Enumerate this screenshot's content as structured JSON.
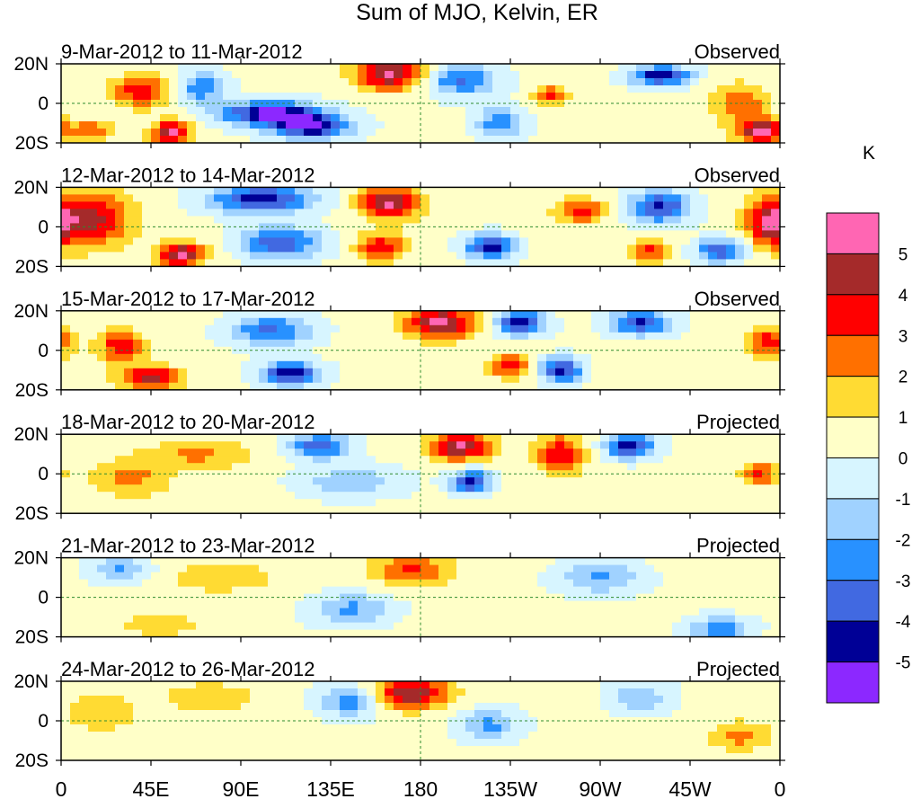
{
  "chart_data": {
    "type": "heatmap",
    "title": "Sum of MJO, Kelvin, ER",
    "units": "K",
    "x_ticks": [
      "0",
      "45E",
      "90E",
      "135E",
      "180",
      "135W",
      "90W",
      "45W",
      "0"
    ],
    "y_ticks": [
      "20N",
      "0",
      "20S"
    ],
    "xlim_degE": [
      0,
      360
    ],
    "ylim_deg": [
      -20,
      20
    ],
    "colorbar": {
      "labels": [
        "5",
        "4",
        "3",
        "2",
        "1",
        "0",
        "-1",
        "-2",
        "-3",
        "-4",
        "-5"
      ],
      "colors": [
        "#ff66b3",
        "#a52a2a",
        "#ff0000",
        "#ff7000",
        "#ffdb33",
        "#ffffc8",
        "#d7f5ff",
        "#a0d2ff",
        "#2891ff",
        "#4169e1",
        "#000096",
        "#8c28ff"
      ]
    },
    "panels": [
      {
        "period": "9-Mar-2012 to 11-Mar-2012",
        "status": "Observed",
        "blobs": [
          {
            "lon": 40,
            "lat": 6,
            "v": 3.5,
            "w": 15,
            "h": 8
          },
          {
            "lon": 15,
            "lat": -14,
            "v": 2.5,
            "w": 10,
            "h": 6
          },
          {
            "lon": 55,
            "lat": -15,
            "v": 5,
            "w": 10,
            "h": 6
          },
          {
            "lon": 70,
            "lat": 8,
            "v": -3,
            "w": 12,
            "h": 8
          },
          {
            "lon": 105,
            "lat": -5,
            "v": -5.5,
            "w": 25,
            "h": 6
          },
          {
            "lon": 125,
            "lat": -12,
            "v": -5,
            "w": 20,
            "h": 6
          },
          {
            "lon": 165,
            "lat": 15,
            "v": 5,
            "w": 18,
            "h": 8
          },
          {
            "lon": 200,
            "lat": 12,
            "v": -3.5,
            "w": 18,
            "h": 8
          },
          {
            "lon": 220,
            "lat": -10,
            "v": -3,
            "w": 12,
            "h": 8
          },
          {
            "lon": 245,
            "lat": 4,
            "v": 3,
            "w": 8,
            "h": 5
          },
          {
            "lon": 300,
            "lat": 14,
            "v": -5,
            "w": 15,
            "h": 5
          },
          {
            "lon": 340,
            "lat": 0,
            "v": 2.5,
            "w": 15,
            "h": 10
          },
          {
            "lon": 350,
            "lat": -14,
            "v": 5,
            "w": 12,
            "h": 6
          }
        ]
      },
      {
        "period": "12-Mar-2012 to 14-Mar-2012",
        "status": "Observed",
        "blobs": [
          {
            "lon": 15,
            "lat": 4,
            "v": 4,
            "w": 20,
            "h": 14
          },
          {
            "lon": 60,
            "lat": -14,
            "v": 5,
            "w": 12,
            "h": 6
          },
          {
            "lon": 100,
            "lat": 14,
            "v": -5,
            "w": 25,
            "h": 7
          },
          {
            "lon": 110,
            "lat": -8,
            "v": -4,
            "w": 20,
            "h": 8
          },
          {
            "lon": 165,
            "lat": 12,
            "v": 5,
            "w": 15,
            "h": 8
          },
          {
            "lon": 160,
            "lat": -10,
            "v": 3.5,
            "w": 12,
            "h": 7
          },
          {
            "lon": 215,
            "lat": -10,
            "v": -5,
            "w": 12,
            "h": 6
          },
          {
            "lon": 260,
            "lat": 8,
            "v": 3.5,
            "w": 12,
            "h": 6
          },
          {
            "lon": 300,
            "lat": 10,
            "v": -4.5,
            "w": 15,
            "h": 8
          },
          {
            "lon": 295,
            "lat": -12,
            "v": 3,
            "w": 10,
            "h": 6
          },
          {
            "lon": 330,
            "lat": -12,
            "v": -4,
            "w": 12,
            "h": 6
          },
          {
            "lon": 355,
            "lat": 2,
            "v": 4,
            "w": 12,
            "h": 12
          }
        ]
      },
      {
        "period": "15-Mar-2012 to 17-Mar-2012",
        "status": "Observed",
        "blobs": [
          {
            "lon": 30,
            "lat": 2,
            "v": 3.5,
            "w": 12,
            "h": 8
          },
          {
            "lon": 45,
            "lat": -14,
            "v": 4.5,
            "w": 15,
            "h": 6
          },
          {
            "lon": 105,
            "lat": 10,
            "v": -3.5,
            "w": 20,
            "h": 8
          },
          {
            "lon": 115,
            "lat": -12,
            "v": -5,
            "w": 15,
            "h": 6
          },
          {
            "lon": 190,
            "lat": 14,
            "v": 5,
            "w": 18,
            "h": 8
          },
          {
            "lon": 230,
            "lat": 14,
            "v": -5,
            "w": 12,
            "h": 6
          },
          {
            "lon": 225,
            "lat": -8,
            "v": 3.5,
            "w": 10,
            "h": 6
          },
          {
            "lon": 250,
            "lat": -10,
            "v": -5,
            "w": 10,
            "h": 6
          },
          {
            "lon": 290,
            "lat": 14,
            "v": -4.5,
            "w": 15,
            "h": 6
          },
          {
            "lon": 355,
            "lat": 4,
            "v": 3.5,
            "w": 10,
            "h": 8
          }
        ]
      },
      {
        "period": "18-Mar-2012 to 20-Mar-2012",
        "status": "Projected",
        "blobs": [
          {
            "lon": 35,
            "lat": -2,
            "v": 2,
            "w": 20,
            "h": 10
          },
          {
            "lon": 70,
            "lat": 10,
            "v": 2,
            "w": 25,
            "h": 8
          },
          {
            "lon": 130,
            "lat": 14,
            "v": -4,
            "w": 15,
            "h": 6
          },
          {
            "lon": 145,
            "lat": -4,
            "v": -2,
            "w": 25,
            "h": 8
          },
          {
            "lon": 200,
            "lat": 14,
            "v": 5,
            "w": 15,
            "h": 7
          },
          {
            "lon": 205,
            "lat": -4,
            "v": -4.5,
            "w": 10,
            "h": 6
          },
          {
            "lon": 250,
            "lat": 10,
            "v": 3.5,
            "w": 12,
            "h": 10
          },
          {
            "lon": 285,
            "lat": 14,
            "v": -5,
            "w": 12,
            "h": 6
          },
          {
            "lon": 350,
            "lat": 0,
            "v": 3,
            "w": 10,
            "h": 6
          }
        ]
      },
      {
        "period": "21-Mar-2012 to 23-Mar-2012",
        "status": "Projected",
        "blobs": [
          {
            "lon": 30,
            "lat": 14,
            "v": -2.5,
            "w": 15,
            "h": 6
          },
          {
            "lon": 80,
            "lat": 10,
            "v": 1.5,
            "w": 30,
            "h": 8
          },
          {
            "lon": 50,
            "lat": -14,
            "v": 1.5,
            "w": 20,
            "h": 6
          },
          {
            "lon": 175,
            "lat": 14,
            "v": 3,
            "w": 20,
            "h": 8
          },
          {
            "lon": 145,
            "lat": -6,
            "v": -2.5,
            "w": 20,
            "h": 8
          },
          {
            "lon": 270,
            "lat": 10,
            "v": -2.5,
            "w": 20,
            "h": 8
          },
          {
            "lon": 330,
            "lat": -16,
            "v": -3,
            "w": 15,
            "h": 6
          }
        ]
      },
      {
        "period": "24-Mar-2012 to 26-Mar-2012",
        "status": "Projected",
        "blobs": [
          {
            "lon": 20,
            "lat": 4,
            "v": 1.5,
            "w": 20,
            "h": 10
          },
          {
            "lon": 75,
            "lat": 12,
            "v": 1.5,
            "w": 25,
            "h": 8
          },
          {
            "lon": 145,
            "lat": 10,
            "v": -3,
            "w": 15,
            "h": 8
          },
          {
            "lon": 175,
            "lat": 14,
            "v": 4.5,
            "w": 20,
            "h": 8
          },
          {
            "lon": 215,
            "lat": -2,
            "v": -2.5,
            "w": 15,
            "h": 8
          },
          {
            "lon": 290,
            "lat": 12,
            "v": -2,
            "w": 15,
            "h": 8
          },
          {
            "lon": 340,
            "lat": -8,
            "v": 2,
            "w": 15,
            "h": 8
          }
        ]
      }
    ]
  }
}
